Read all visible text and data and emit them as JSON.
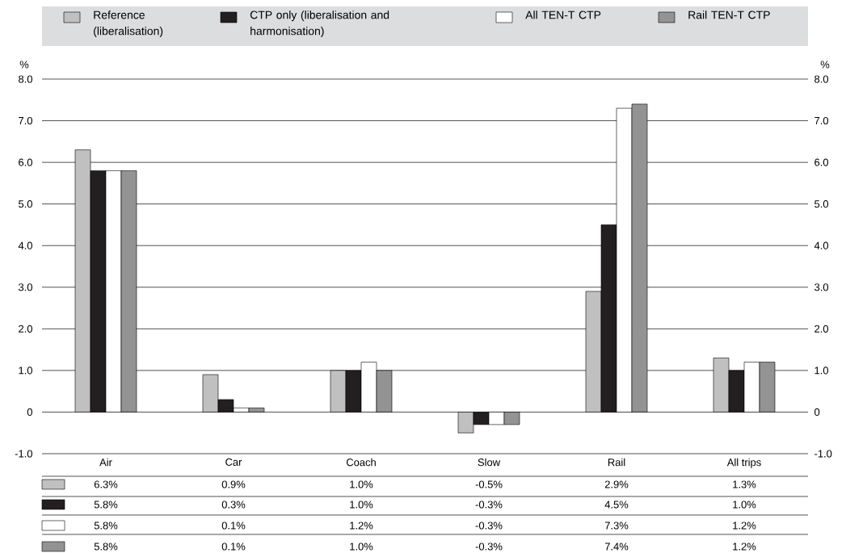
{
  "chart_data": {
    "type": "bar",
    "categories": [
      "Air",
      "Car",
      "Coach",
      "Slow",
      "Rail",
      "All trips"
    ],
    "series": [
      {
        "name": "Reference (liberalisation)",
        "color": "#c0c0c0",
        "values": [
          6.3,
          0.9,
          1.0,
          -0.5,
          2.9,
          1.3
        ],
        "value_labels": [
          "6.3%",
          "0.9%",
          "1.0%",
          "-0.5%",
          "2.9%",
          "1.3%"
        ]
      },
      {
        "name": "CTP only (liberalisation and harmonisation)",
        "color": "#231f20",
        "values": [
          5.8,
          0.3,
          1.0,
          -0.3,
          4.5,
          1.0
        ],
        "value_labels": [
          "5.8%",
          "0.3%",
          "1.0%",
          "-0.3%",
          "4.5%",
          "1.0%"
        ]
      },
      {
        "name": "All TEN-T CTP",
        "color": "#ffffff",
        "values": [
          5.8,
          0.1,
          1.2,
          -0.3,
          7.3,
          1.2
        ],
        "value_labels": [
          "5.8%",
          "0.1%",
          "1.2%",
          "-0.3%",
          "7.3%",
          "1.2%"
        ]
      },
      {
        "name": "Rail TEN-T CTP",
        "color": "#939393",
        "values": [
          5.8,
          0.1,
          1.0,
          -0.3,
          7.4,
          1.2
        ],
        "value_labels": [
          "5.8%",
          "0.1%",
          "1.0%",
          "-0.3%",
          "7.4%",
          "1.2%"
        ]
      }
    ],
    "ylabel": "%",
    "y2label": "%",
    "ylim": [
      -1,
      8
    ],
    "yticks": [
      {
        "value": -1,
        "label": "-1.0"
      },
      0,
      {
        "value": 1,
        "label": "1.0"
      },
      {
        "value": 2,
        "label": "2.0"
      },
      {
        "value": 3,
        "label": "3.0"
      },
      {
        "value": 4,
        "label": "4.0"
      },
      {
        "value": 5,
        "label": "5.0"
      },
      {
        "value": 6,
        "label": "6.0"
      },
      {
        "value": 7,
        "label": "7.0"
      },
      {
        "value": 8,
        "label": "8.0"
      }
    ],
    "y2lim": [
      -1,
      8
    ],
    "y2ticks": [
      {
        "value": -1,
        "label": "-1.0"
      },
      0,
      {
        "value": 1,
        "label": "1.0"
      },
      {
        "value": 2,
        "label": "2.0"
      },
      {
        "value": 3,
        "label": "3.0"
      },
      {
        "value": 4,
        "label": "4.0"
      },
      {
        "value": 5,
        "label": "5.0"
      },
      {
        "value": 6,
        "label": "6.0"
      },
      {
        "value": 7,
        "label": "7.0"
      },
      {
        "value": 8,
        "label": "8.0"
      }
    ],
    "grid": "y",
    "legend": "top"
  }
}
